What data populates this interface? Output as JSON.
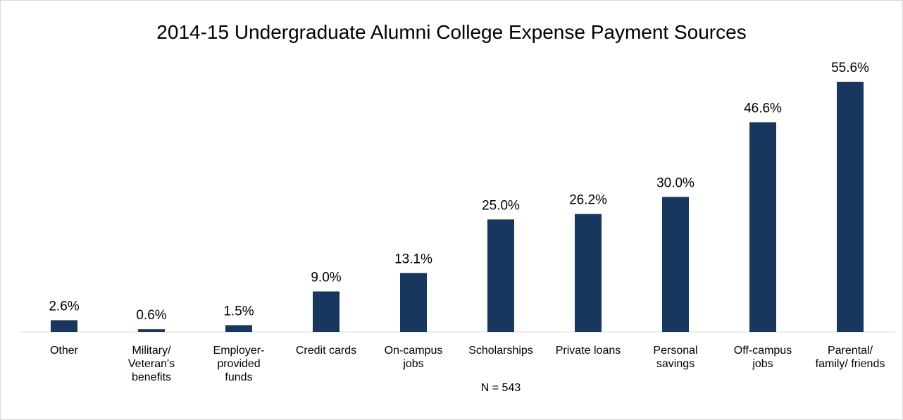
{
  "chart_data": {
    "type": "bar",
    "title": "2014-15 Undergraduate Alumni College Expense Payment Sources",
    "categories": [
      "Other",
      "Military/ Veteran's benefits",
      "Employer-provided funds",
      "Credit cards",
      "On-campus jobs",
      "Scholarships",
      "Private loans",
      "Personal savings",
      "Off-campus jobs",
      "Parental/ family/ friends"
    ],
    "values": [
      2.6,
      0.6,
      1.5,
      9.0,
      13.1,
      25.0,
      26.2,
      30.0,
      46.6,
      55.6
    ],
    "value_labels": [
      "2.6%",
      "0.6%",
      "1.5%",
      "9.0%",
      "13.1%",
      "25.0%",
      "26.2%",
      "30.0%",
      "46.6%",
      "55.6%"
    ],
    "color": "#17375e",
    "note": "N = 543"
  }
}
